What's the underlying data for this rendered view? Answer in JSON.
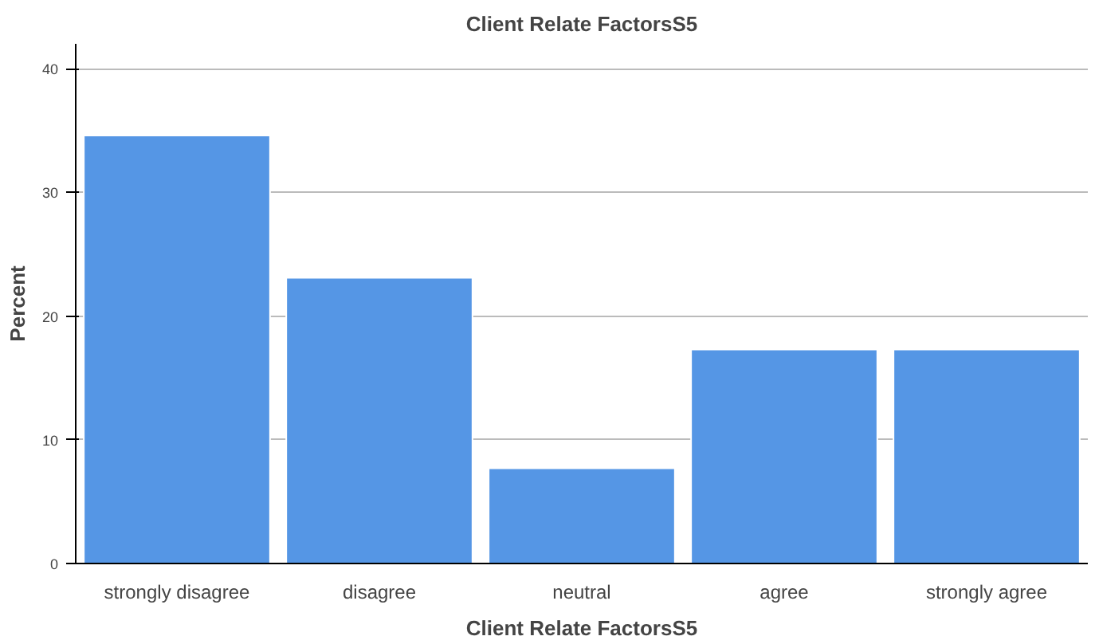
{
  "chart_data": {
    "type": "bar",
    "title": "Client Relate FactorsS5",
    "xlabel": "Client Relate FactorsS5",
    "ylabel": "Percent",
    "categories": [
      "strongly disagree",
      "disagree",
      "neutral",
      "agree",
      "strongly agree"
    ],
    "values": [
      34.6,
      23.1,
      7.7,
      17.3,
      17.3
    ],
    "color": "#5596e5",
    "ylim": [
      0,
      42
    ],
    "yticks": [
      0,
      10,
      20,
      30,
      40
    ],
    "grid": "y"
  }
}
